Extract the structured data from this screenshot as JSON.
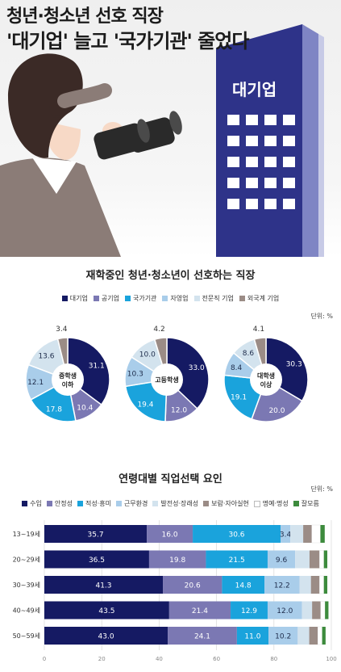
{
  "hero": {
    "title_line1": "청년·청소년 선호 직장",
    "title_line2": "'대기업' 늘고 '국가기관' 줄었다",
    "building_sign": "대기업"
  },
  "colors": {
    "navy": "#151a63",
    "purple": "#7b78b3",
    "cyan": "#1aa3dc",
    "light_blue": "#a9cdea",
    "pale_blue": "#d3e3ee",
    "brown_gray": "#9b8c86",
    "white": "#ffffff",
    "green": "#3d8b3d"
  },
  "chart_data": [
    {
      "type": "pie",
      "title": "재학중인 청년·청소년이 선호하는 직장",
      "unit": "단위: %",
      "legend": [
        "대기업",
        "공기업",
        "국가기관",
        "자영업",
        "전문직 기업",
        "외국계 기업"
      ],
      "series": [
        {
          "name": "중학생 이하",
          "values": [
            31.1,
            10.4,
            17.8,
            12.1,
            13.6,
            3.4
          ]
        },
        {
          "name": "고등학생",
          "values": [
            33.0,
            12.0,
            19.4,
            10.3,
            10.0,
            4.2
          ]
        },
        {
          "name": "대학생 이상",
          "values": [
            30.3,
            20.0,
            19.1,
            8.4,
            8.6,
            4.1
          ]
        }
      ]
    },
    {
      "type": "bar",
      "orientation": "horizontal",
      "stacked": true,
      "title": "연령대별 직업선택 요인",
      "unit": "단위: %",
      "categories": [
        "13~19세",
        "20~29세",
        "30~39세",
        "40~49세",
        "50~59세"
      ],
      "xlim": [
        0,
        100
      ],
      "xticks": [
        "0",
        "20",
        "40",
        "60",
        "80",
        "100"
      ],
      "series": [
        {
          "name": "수입",
          "values": [
            35.7,
            36.5,
            41.3,
            43.5,
            43.0
          ]
        },
        {
          "name": "안정성",
          "values": [
            16.0,
            19.8,
            20.6,
            21.4,
            24.1
          ]
        },
        {
          "name": "적성·흥미",
          "values": [
            30.6,
            21.5,
            14.8,
            12.9,
            11.0
          ]
        },
        {
          "name": "근무환경",
          "values": [
            3.4,
            9.6,
            12.2,
            12.0,
            10.2
          ]
        },
        {
          "name": "발전성·장래성",
          "values": [
            4.5,
            5.0,
            4.0,
            3.5,
            4.0
          ]
        },
        {
          "name": "보람·자아실현",
          "values": [
            3.0,
            3.5,
            3.0,
            3.0,
            3.0
          ]
        },
        {
          "name": "명예·명성",
          "values": [
            3.0,
            1.5,
            1.5,
            1.5,
            1.5
          ]
        },
        {
          "name": "잘모름",
          "values": [
            1.5,
            1.2,
            1.2,
            1.2,
            1.2
          ]
        }
      ],
      "labeled_series": 4
    }
  ]
}
